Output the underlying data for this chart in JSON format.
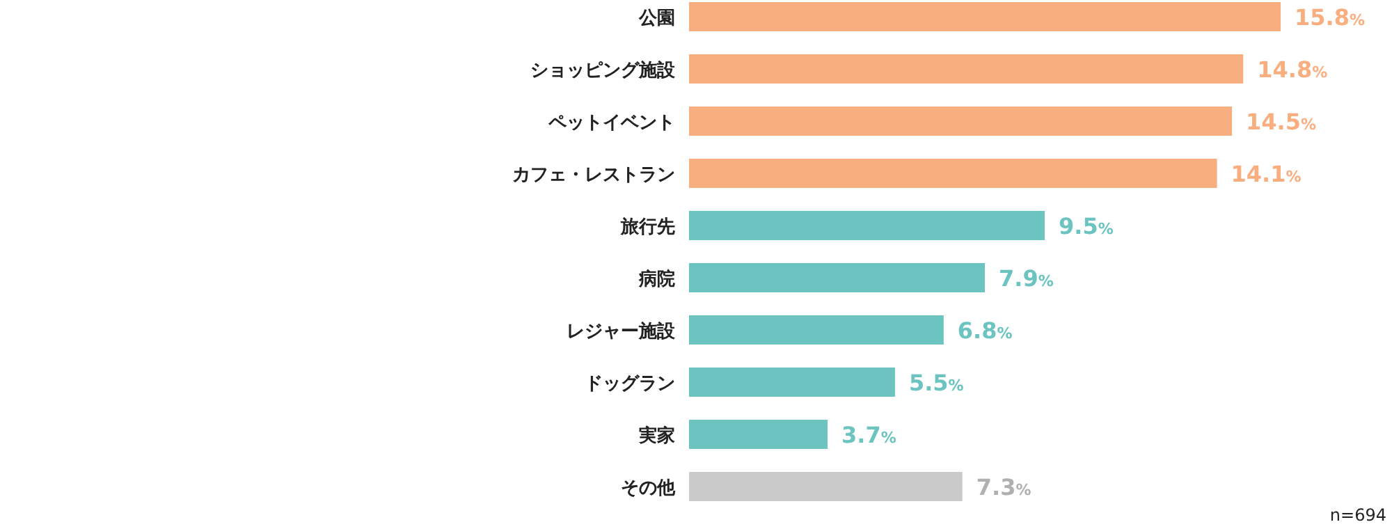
{
  "chart_data": {
    "type": "bar",
    "orientation": "horizontal",
    "categories": [
      "公園",
      "ショッピング施設",
      "ペットイベント",
      "カフェ・レストラン",
      "旅行先",
      "病院",
      "レジャー施設",
      "ドッグラン",
      "実家",
      "その他"
    ],
    "values": [
      15.8,
      14.8,
      14.5,
      14.1,
      9.5,
      7.9,
      6.8,
      5.5,
      3.7,
      7.3
    ],
    "colors": [
      "#f9ae80",
      "#f9ae80",
      "#f9ae80",
      "#f9ae80",
      "#6cc4c1",
      "#6cc4c1",
      "#6cc4c1",
      "#6cc4c1",
      "#6cc4c1",
      "#cacaca"
    ],
    "value_labels": [
      "15.8%",
      "14.8%",
      "14.5%",
      "14.1%",
      "9.5%",
      "7.9%",
      "6.8%",
      "5.5%",
      "3.7%",
      "7.3%"
    ],
    "annotations": [
      "n=694"
    ]
  }
}
